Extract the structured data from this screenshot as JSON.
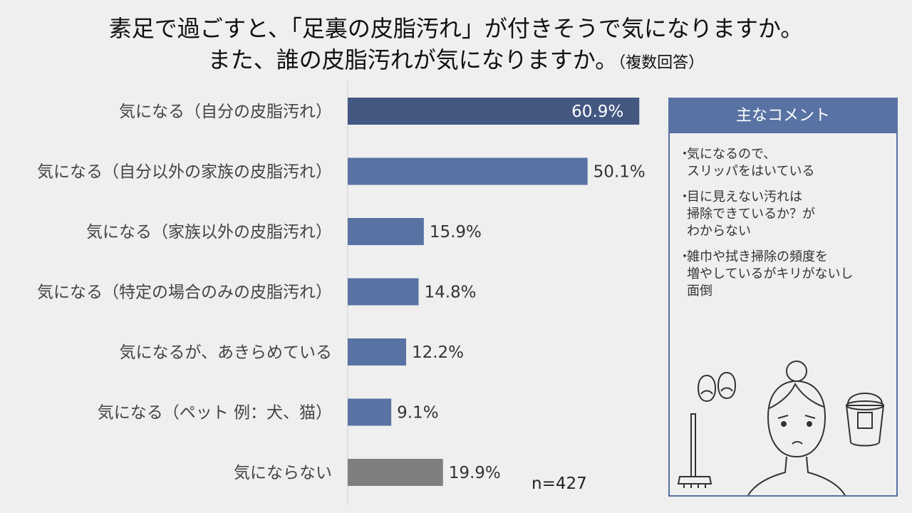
{
  "title": {
    "line1": "素足で過ごすと、「足裏の皮脂汚れ」が付きそうで気になりますか。",
    "line2": "また、誰の皮脂汚れが気になりますか。",
    "line2_suffix": "（複数回答）"
  },
  "chart_data": {
    "type": "bar",
    "orientation": "horizontal",
    "unit": "%",
    "categories": [
      "気になる（自分の皮脂汚れ）",
      "気になる（自分以外の家族の皮脂汚れ）",
      "気になる（家族以外の皮脂汚れ）",
      "気になる（特定の場合のみの皮脂汚れ）",
      "気になるが、あきらめている",
      "気になる（ペット 例：犬、猫）",
      "気にならない"
    ],
    "values": [
      60.9,
      50.1,
      15.9,
      14.8,
      12.2,
      9.1,
      19.9
    ],
    "value_labels": [
      "60.9%",
      "50.1%",
      "15.9%",
      "14.8%",
      "12.2%",
      "9.1%",
      "19.9%"
    ],
    "colors": [
      "#435781",
      "#5872a3",
      "#5872a3",
      "#5872a3",
      "#5872a3",
      "#5872a3",
      "#7f7f7f"
    ],
    "xlim": [
      0,
      100
    ],
    "axis_visible": false,
    "note": "n=427"
  },
  "comments": {
    "header": "主なコメント",
    "bullet": "・",
    "items": [
      "気になるので、\nスリッパをはいている",
      "目に見えない汚れは\n掃除できているか？が\nわからない",
      "雑巾や拭き掃除の頻度を\n増やしているがキリがないし\n面倒"
    ]
  },
  "colors": {
    "background": "#efefef",
    "bar_dark": "#435781",
    "bar": "#5872a3",
    "bar_gray": "#7f7f7f",
    "panel_border": "#5872a3"
  },
  "icons": [
    "slippers-icon",
    "person-icon",
    "mop-icon",
    "bucket-icon"
  ]
}
